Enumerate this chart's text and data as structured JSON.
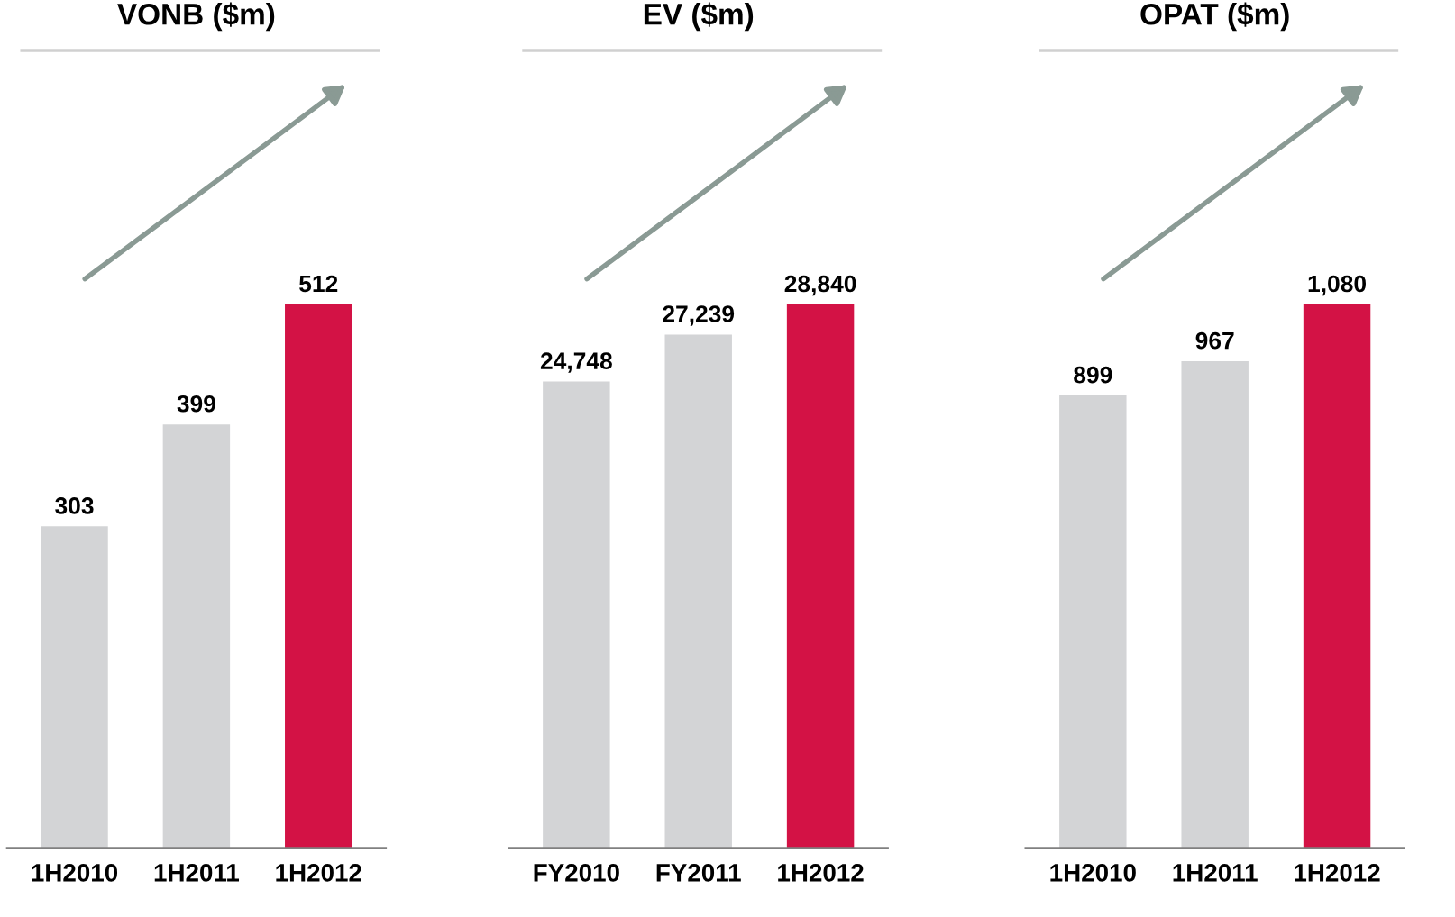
{
  "chart_data": [
    {
      "type": "bar",
      "title": "VONB ($m)",
      "categories": [
        "1H2010",
        "1H2011",
        "1H2012"
      ],
      "values": [
        303,
        399,
        512
      ],
      "colors": [
        "#d3d4d6",
        "#d3d4d6",
        "#d31245"
      ],
      "data_labels": true,
      "value_labels": [
        "303",
        "399",
        "512"
      ]
    },
    {
      "type": "bar",
      "title": "EV ($m)",
      "categories": [
        "FY2010",
        "FY2011",
        "1H2012"
      ],
      "values": [
        24748,
        27239,
        28840
      ],
      "colors": [
        "#d3d4d6",
        "#d3d4d6",
        "#d31245"
      ],
      "data_labels": true,
      "value_labels": [
        "24,748",
        "27,239",
        "28,840"
      ]
    },
    {
      "type": "bar",
      "title": "OPAT ($m)",
      "categories": [
        "1H2010",
        "1H2011",
        "1H2012"
      ],
      "values": [
        899,
        967,
        1080
      ],
      "colors": [
        "#d3d4d6",
        "#d3d4d6",
        "#d31245"
      ],
      "data_labels": true,
      "value_labels": [
        "899",
        "967",
        "1,080"
      ]
    }
  ]
}
